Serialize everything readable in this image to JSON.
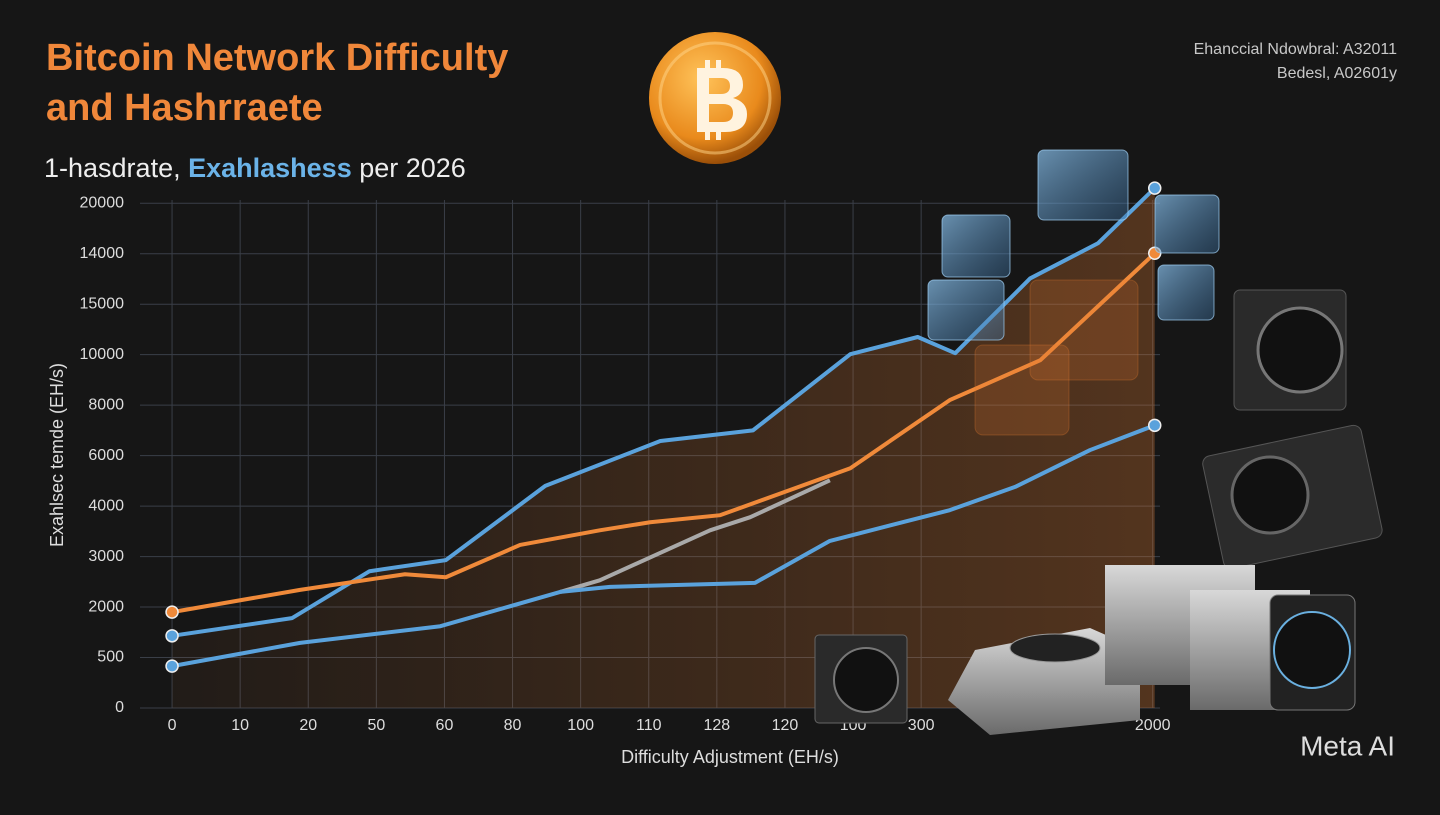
{
  "chart_data": {
    "type": "line",
    "title_lines": [
      "Bitcoin Network Difficulty",
      "and Hashrraete"
    ],
    "subtitle_parts": [
      "1-hasdrate,",
      "Exahlashess",
      "per 2026"
    ],
    "corner_lines": [
      "Ehanccial Ndowbral: A32011",
      "Bedesl, A02601y"
    ],
    "watermark": "Meta AI",
    "x_label": "Difficulty Adjustment (EH/s)",
    "y_label": "Exahlsec temde (EH/s)",
    "xlim": [
      -0.5,
      14.5
    ],
    "xticks": [
      0,
      {
        "value": 1,
        "label": "10"
      },
      {
        "value": 2,
        "label": "20"
      },
      {
        "value": 3,
        "label": "50"
      },
      {
        "value": 4,
        "label": "60"
      },
      {
        "value": 5,
        "label": "80"
      },
      {
        "value": 6,
        "label": "100"
      },
      {
        "value": 7,
        "label": "110"
      },
      {
        "value": 8,
        "label": "128"
      },
      {
        "value": 9,
        "label": "120"
      },
      {
        "value": 10,
        "label": "100"
      },
      {
        "value": 11,
        "label": "300"
      },
      {
        "value": 14.4,
        "label": "2000"
      }
    ],
    "ylim": [
      0,
      10.5
    ],
    "yticks": [
      0,
      {
        "value": 1,
        "label": "500"
      },
      {
        "value": 2,
        "label": "2000"
      },
      {
        "value": 3,
        "label": "3000"
      },
      {
        "value": 4,
        "label": "4000"
      },
      {
        "value": 5,
        "label": "6000"
      },
      {
        "value": 6,
        "label": "8000"
      },
      {
        "value": 7,
        "label": "10000"
      },
      {
        "value": 8,
        "label": "15000"
      },
      {
        "value": 9,
        "label": "14000"
      },
      {
        "value": 10,
        "label": "20000"
      }
    ],
    "grid": true,
    "series": [
      {
        "color": "#5aa2dc",
        "x": [
          0,
          1.76,
          2.9,
          4.02,
          5.48,
          7.17,
          8.53,
          9.96,
          10.95,
          11.5,
          12.6,
          13.6,
          14.43
        ],
        "values": [
          1.43,
          1.78,
          2.71,
          2.93,
          4.4,
          5.29,
          5.5,
          7.01,
          7.35,
          7.03,
          8.51,
          9.21,
          10.3
        ]
      },
      {
        "color": "#f08a3a",
        "x": [
          0,
          1.88,
          3.42,
          4.02,
          5.11,
          6.28,
          7.02,
          8.05,
          9.96,
          11.42,
          12.75,
          14.43
        ],
        "values": [
          1.9,
          2.34,
          2.65,
          2.59,
          3.23,
          3.52,
          3.68,
          3.82,
          4.75,
          6.1,
          6.89,
          9.01
        ]
      },
      {
        "color": "#a9a9a9",
        "x": [
          5.7,
          6.28,
          7.9,
          8.49,
          9.66
        ],
        "values": [
          2.3,
          2.53,
          3.52,
          3.78,
          4.51
        ]
      },
      {
        "color": "#5aa2dc",
        "x": [
          0,
          1.88,
          3.94,
          5.7,
          6.43,
          8.56,
          9.66,
          11.42,
          12.38,
          13.48,
          14.43
        ],
        "values": [
          0.83,
          1.29,
          1.62,
          2.3,
          2.4,
          2.48,
          3.31,
          3.92,
          4.38,
          5.11,
          5.6
        ]
      }
    ]
  }
}
